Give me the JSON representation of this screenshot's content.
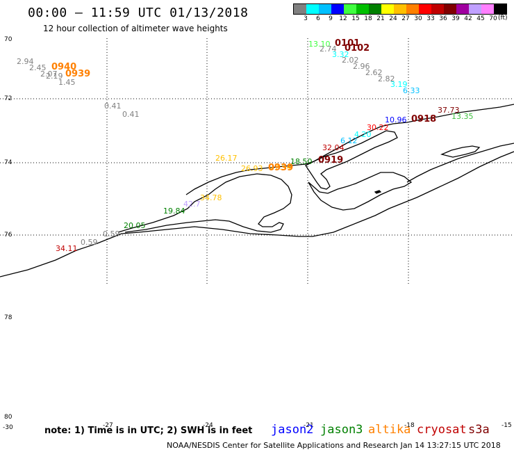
{
  "title": "00:00 – 11:59 UTC 01/13/2018",
  "subtitle": "12 hour collection of altimeter wave heights",
  "legend": {
    "unit": "(ft)",
    "colors": [
      "#808080",
      "#00ffff",
      "#00c0ff",
      "#0000ff",
      "#40ff40",
      "#00c000",
      "#008000",
      "#ffff00",
      "#ffc000",
      "#ff8000",
      "#ff0000",
      "#c00000",
      "#800000",
      "#a000a0",
      "#c0a0ff",
      "#ff80ff",
      "#000000"
    ],
    "ticks": [
      "3",
      "6",
      "9",
      "12",
      "15",
      "18",
      "21",
      "24",
      "27",
      "30",
      "33",
      "36",
      "39",
      "42",
      "45",
      "70"
    ]
  },
  "lat_labels": [
    "70",
    "72",
    "74",
    "76",
    "78",
    "80"
  ],
  "lon_labels": [
    "-30",
    "-27",
    "-24",
    "-21",
    "-18",
    "-15"
  ],
  "values": [
    {
      "t": "2.94",
      "c": "#808080"
    },
    {
      "t": "2.45",
      "c": "#808080"
    },
    {
      "t": "2.07",
      "c": "#808080"
    },
    {
      "t": "2.19",
      "c": "#808080"
    },
    {
      "t": "1.45",
      "c": "#808080"
    },
    {
      "t": "0.41",
      "c": "#808080"
    },
    {
      "t": "0.41",
      "c": "#808080"
    },
    {
      "t": "13.10",
      "c": "#40ff40"
    },
    {
      "t": "2.74",
      "c": "#808080"
    },
    {
      "t": "3.32",
      "c": "#00ffff"
    },
    {
      "t": "2.02",
      "c": "#808080"
    },
    {
      "t": "2.96",
      "c": "#808080"
    },
    {
      "t": "2.62",
      "c": "#808080"
    },
    {
      "t": "2.82",
      "c": "#808080"
    },
    {
      "t": "3.19",
      "c": "#00ffff"
    },
    {
      "t": "6.33",
      "c": "#00c0ff"
    },
    {
      "t": "37.73",
      "c": "#800000"
    },
    {
      "t": "13.35",
      "c": "#40c040"
    },
    {
      "t": "10.96",
      "c": "#0000ff"
    },
    {
      "t": "30.22",
      "c": "#ff0000"
    },
    {
      "t": "4.20",
      "c": "#00ffff"
    },
    {
      "t": "6.12",
      "c": "#00c0ff"
    },
    {
      "t": "32.04",
      "c": "#c00000"
    },
    {
      "t": "18.50",
      "c": "#008000"
    },
    {
      "t": "26.17",
      "c": "#ffc000"
    },
    {
      "t": "26.93",
      "c": "#ffc000"
    },
    {
      "t": "27.94",
      "c": "#ffc000"
    },
    {
      "t": "34.78",
      "c": "#ffc000"
    },
    {
      "t": "42.7",
      "c": "#c0a0ff"
    },
    {
      "t": "19.84",
      "c": "#008000"
    },
    {
      "t": "20.05",
      "c": "#008000"
    },
    {
      "t": "0.59",
      "c": "#808080"
    },
    {
      "t": "0.59",
      "c": "#808080"
    },
    {
      "t": "34.11",
      "c": "#c00000"
    }
  ],
  "times": [
    {
      "t": "0940",
      "c": "#ff8000"
    },
    {
      "t": "0939",
      "c": "#ff8000"
    },
    {
      "t": "0101",
      "c": "#800000"
    },
    {
      "t": "0102",
      "c": "#800000"
    },
    {
      "t": "0918",
      "c": "#800000"
    },
    {
      "t": "0919",
      "c": "#800000"
    },
    {
      "t": "0939",
      "c": "#ff8000"
    }
  ],
  "note": "note: 1) Time is in UTC; 2) SWH is in feet",
  "satellites": [
    {
      "name": "jason2",
      "c": "#0000ff"
    },
    {
      "name": "jason3",
      "c": "#008000"
    },
    {
      "name": "altika",
      "c": "#ff8000"
    },
    {
      "name": "cryosat",
      "c": "#c00000"
    },
    {
      "name": "s3a",
      "c": "#800000"
    }
  ],
  "credit": "NOAA/NESDIS Center for Satellite Applications and Research    Jan 14 13:27:15 UTC 2018"
}
